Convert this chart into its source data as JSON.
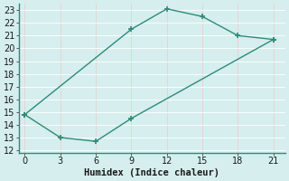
{
  "line1_x": [
    0,
    9,
    12,
    15,
    18,
    21
  ],
  "line1_y": [
    14.8,
    21.5,
    23.1,
    22.5,
    21.0,
    20.7
  ],
  "line2_x": [
    0,
    3,
    6,
    9,
    21
  ],
  "line2_y": [
    14.8,
    13.0,
    12.7,
    14.5,
    20.7
  ],
  "line_color": "#2d8b78",
  "bg_color": "#d6eeee",
  "grid_color": "#c8e8e8",
  "xlabel": "Humidex (Indice chaleur)",
  "xlim": [
    -0.5,
    22
  ],
  "ylim": [
    11.8,
    23.5
  ],
  "xticks": [
    0,
    3,
    6,
    9,
    12,
    15,
    18,
    21
  ],
  "yticks": [
    12,
    13,
    14,
    15,
    16,
    17,
    18,
    19,
    20,
    21,
    22,
    23
  ],
  "marker": "+",
  "marker_size": 5,
  "line_width": 1.0,
  "font_size": 7.5
}
